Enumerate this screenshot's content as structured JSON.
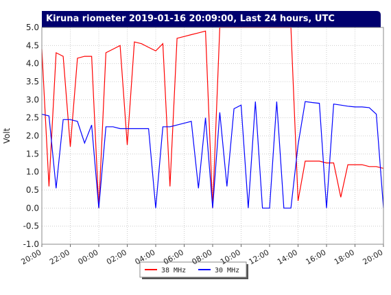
{
  "chart_data": {
    "type": "line",
    "title": "Kiruna riometer 2019-01-16 20:09:00, Last 24 hours, UTC",
    "y_label": "Volt",
    "x": [
      0,
      0.5,
      1,
      1.5,
      2,
      2.5,
      3,
      3.5,
      4,
      4.5,
      5,
      5.5,
      6,
      6.5,
      7,
      7.5,
      8,
      8.5,
      9,
      9.5,
      10,
      10.5,
      11,
      11.5,
      12,
      12.5,
      13,
      13.5,
      14,
      14.5,
      15,
      15.5,
      16,
      16.5,
      17,
      17.5,
      18,
      18.5,
      19,
      19.5,
      20,
      20.5,
      21,
      21.5,
      22,
      22.5,
      23,
      23.5,
      24
    ],
    "series": [
      {
        "name": "38 MHz",
        "color": "#ff0000",
        "values": [
          4.4,
          0.6,
          4.3,
          4.2,
          1.7,
          4.15,
          4.2,
          4.2,
          0,
          4.3,
          4.4,
          4.5,
          1.75,
          4.6,
          4.55,
          4.45,
          4.35,
          4.55,
          0.6,
          4.7,
          4.75,
          4.8,
          4.85,
          4.9,
          0,
          5.0,
          5.0,
          5.0,
          5.0,
          5.0,
          5.0,
          5.0,
          5.0,
          5.0,
          5.0,
          5.0,
          0.2,
          1.3,
          1.3,
          1.3,
          1.25,
          1.25,
          0.3,
          1.2,
          1.2,
          1.2,
          1.15,
          1.15,
          1.1
        ]
      },
      {
        "name": "30 MHz",
        "color": "#0000ff",
        "values": [
          2.6,
          2.55,
          0.55,
          2.45,
          2.45,
          2.4,
          1.8,
          2.3,
          0,
          2.25,
          2.25,
          2.2,
          2.2,
          2.2,
          2.2,
          2.2,
          0,
          2.25,
          2.25,
          2.3,
          2.35,
          2.4,
          0.55,
          2.5,
          0,
          2.65,
          0.6,
          2.75,
          2.85,
          0,
          2.95,
          0,
          0,
          2.95,
          0,
          0,
          1.75,
          2.95,
          2.92,
          2.9,
          0,
          2.88,
          2.85,
          2.82,
          2.8,
          2.8,
          2.78,
          2.6,
          0
        ]
      }
    ],
    "xlim": [
      0,
      24
    ],
    "xticks": [
      {
        "value": 0,
        "label": "20:00"
      },
      {
        "value": 2,
        "label": "22:00"
      },
      {
        "value": 4,
        "label": "00:00"
      },
      {
        "value": 6,
        "label": "02:00"
      },
      {
        "value": 8,
        "label": "04:00"
      },
      {
        "value": 10,
        "label": "06:00"
      },
      {
        "value": 12,
        "label": "08:00"
      },
      {
        "value": 14,
        "label": "10:00"
      },
      {
        "value": 16,
        "label": "12:00"
      },
      {
        "value": 18,
        "label": "14:00"
      },
      {
        "value": 20,
        "label": "16:00"
      },
      {
        "value": 22,
        "label": "18:00"
      },
      {
        "value": 24,
        "label": "20:00"
      }
    ],
    "ylim": [
      -1,
      5
    ],
    "yticks": [
      {
        "value": 5,
        "label": "5.0"
      },
      {
        "value": 4.5,
        "label": "4.5"
      },
      {
        "value": 4,
        "label": "4.0"
      },
      {
        "value": 3.5,
        "label": "3.5"
      },
      {
        "value": 3,
        "label": "3.0"
      },
      {
        "value": 2.5,
        "label": "2.5"
      },
      {
        "value": 2,
        "label": "2.0"
      },
      {
        "value": 1.5,
        "label": "1.5"
      },
      {
        "value": 1,
        "label": "1.0"
      },
      {
        "value": 0.5,
        "label": "0.5"
      },
      {
        "value": 0,
        "label": "0.0"
      },
      {
        "value": -0.5,
        "label": "-0.5"
      },
      {
        "value": -1,
        "label": "-1.0"
      }
    ],
    "grid": true,
    "legend": "bottom"
  }
}
